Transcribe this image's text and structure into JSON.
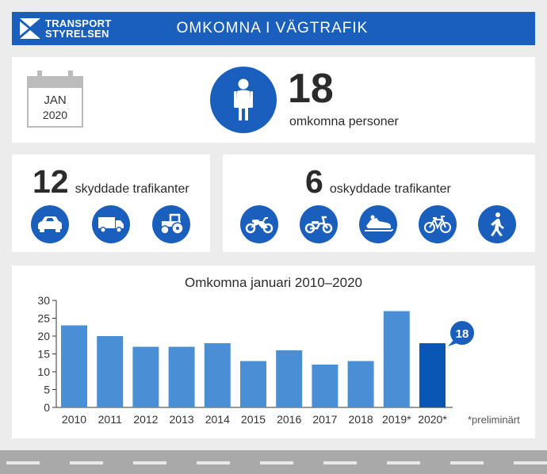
{
  "header": {
    "logo_line1": "TRANSPORT",
    "logo_line2": "STYRELSEN",
    "title": "OMKOMNA I VÄGTRAFIK"
  },
  "colors": {
    "brand_blue": "#1b5fbd",
    "bar": "#4a8fd6",
    "bar_highlight": "#0a56b5"
  },
  "period": {
    "month": "JAN",
    "year": "2020"
  },
  "total": {
    "count": "18",
    "label": "omkomna personer",
    "icon": "person-icon"
  },
  "protected": {
    "count": "12",
    "label": "skyddade trafikanter",
    "icons": [
      "car-icon",
      "truck-icon",
      "tractor-icon"
    ]
  },
  "unprotected": {
    "count": "6",
    "label": "oskyddade trafikanter",
    "icons": [
      "motorcycle-icon",
      "moped-icon",
      "snowmobile-icon",
      "bicycle-icon",
      "pedestrian-icon"
    ]
  },
  "chart_data": {
    "type": "bar",
    "title": "Omkomna januari 2010–2020",
    "categories": [
      "2010",
      "2011",
      "2012",
      "2013",
      "2014",
      "2015",
      "2016",
      "2017",
      "2018",
      "2019*",
      "2020*"
    ],
    "values": [
      23,
      20,
      17,
      17,
      18,
      13,
      16,
      12,
      13,
      27,
      18
    ],
    "ylim": [
      0,
      30
    ],
    "yticks": [
      0,
      5,
      10,
      15,
      20,
      25,
      30
    ],
    "highlight_index": 10,
    "callout": "18",
    "footnote": "*preliminärt",
    "grid": false
  }
}
